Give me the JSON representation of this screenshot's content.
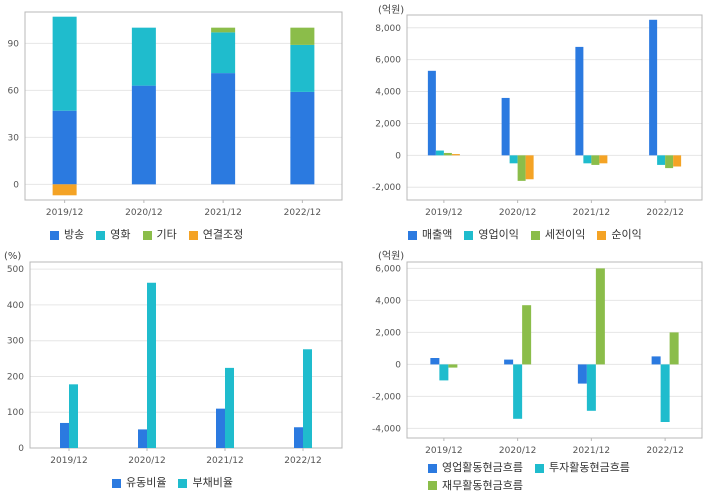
{
  "chart_data": [
    {
      "type": "bar",
      "stacked": true,
      "unit_label": "",
      "categories": [
        "2019/12",
        "2020/12",
        "2021/12",
        "2022/12"
      ],
      "ylim": [
        -10,
        110
      ],
      "yticks": [
        0,
        30,
        60,
        90
      ],
      "series": [
        {
          "name": "방송",
          "color": "#2b7ae0",
          "values": [
            47,
            63,
            71,
            59
          ]
        },
        {
          "name": "영화",
          "color": "#1fbccd",
          "values": [
            60,
            37,
            26,
            30
          ]
        },
        {
          "name": "기타",
          "color": "#8bbd4a",
          "values": [
            0,
            0,
            3,
            11
          ]
        },
        {
          "name": "연결조정",
          "color": "#f4a325",
          "values": [
            -7,
            0,
            0,
            0
          ]
        }
      ],
      "legend": "bottom"
    },
    {
      "type": "bar",
      "unit_label": "(억원)",
      "categories": [
        "2019/12",
        "2020/12",
        "2021/12",
        "2022/12"
      ],
      "ylim": [
        -2800,
        8800
      ],
      "yticks": [
        -2000,
        0,
        2000,
        4000,
        6000,
        8000
      ],
      "ytick_labels": [
        "-2,000",
        "0",
        "2,000",
        "4,000",
        "6,000",
        "8,000"
      ],
      "series": [
        {
          "name": "매출액",
          "color": "#2b7ae0",
          "values": [
            5300,
            3600,
            6800,
            8500
          ]
        },
        {
          "name": "영업이익",
          "color": "#1fbccd",
          "values": [
            300,
            -500,
            -500,
            -600
          ]
        },
        {
          "name": "세전이익",
          "color": "#8bbd4a",
          "values": [
            150,
            -1600,
            -600,
            -800
          ]
        },
        {
          "name": "순이익",
          "color": "#f4a325",
          "values": [
            80,
            -1500,
            -500,
            -700
          ]
        }
      ],
      "legend": "bottom"
    },
    {
      "type": "bar",
      "unit_label": "(%)",
      "categories": [
        "2019/12",
        "2020/12",
        "2021/12",
        "2022/12"
      ],
      "ylim": [
        0,
        520
      ],
      "yticks": [
        0,
        100,
        200,
        300,
        400,
        500
      ],
      "ytick_labels": [
        "0",
        "100",
        "200",
        "300",
        "400",
        "500"
      ],
      "series": [
        {
          "name": "유동비율",
          "color": "#2b7ae0",
          "values": [
            70,
            52,
            110,
            58
          ]
        },
        {
          "name": "부채비율",
          "color": "#1fbccd",
          "values": [
            178,
            462,
            224,
            276
          ]
        }
      ],
      "legend": "bottom"
    },
    {
      "type": "bar",
      "unit_label": "(억원)",
      "categories": [
        "2019/12",
        "2020/12",
        "2021/12",
        "2022/12"
      ],
      "ylim": [
        -4600,
        6400
      ],
      "yticks": [
        -4000,
        -2000,
        0,
        2000,
        4000,
        6000
      ],
      "ytick_labels": [
        "-4,000",
        "-2,000",
        "0",
        "2,000",
        "4,000",
        "6,000"
      ],
      "series": [
        {
          "name": "영업활동현금흐름",
          "color": "#2b7ae0",
          "values": [
            400,
            300,
            -1200,
            500
          ]
        },
        {
          "name": "투자활동현금흐름",
          "color": "#1fbccd",
          "values": [
            -1000,
            -3400,
            -2900,
            -3600
          ]
        },
        {
          "name": "재무활동현금흐름",
          "color": "#8bbd4a",
          "values": [
            -200,
            3700,
            6000,
            2000
          ]
        }
      ],
      "legend": "bottom"
    }
  ]
}
